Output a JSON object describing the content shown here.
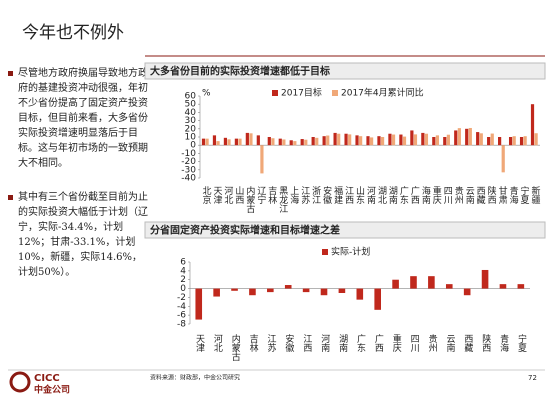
{
  "slide_title": "今年也不例外",
  "bullets": [
    "尽管地方政府换届导致地方政府的基建投资冲动很强，年初不少省份提高了固定资产投资目标，但目前来看，大多省份实际投资增速明显落后于目标。这与年初市场的一致预期大不相同。",
    "其中有三个省份截至目前为止的实际投资大幅低于计划（辽宁，实际-34.4%，计划12%；甘肃-33.1%，计划10%，新疆，实际14.6%，计划50%）。"
  ],
  "chart_data": [
    {
      "type": "bar",
      "title": "大多省份目前的实际投资增速都低于目标",
      "y_unit": "%",
      "categories": [
        "北京",
        "天津",
        "河北",
        "山西",
        "内蒙古",
        "辽宁",
        "吉林",
        "黑龙江",
        "上海",
        "江苏",
        "浙江",
        "安徽",
        "福建",
        "江西",
        "山东",
        "河南",
        "湖北",
        "湖南",
        "广东",
        "广西",
        "海南",
        "重庆",
        "四川",
        "贵州",
        "云南",
        "西藏",
        "陕西",
        "甘肃",
        "青海",
        "宁夏",
        "新疆"
      ],
      "series": [
        {
          "name": "2017目标",
          "color": "#c0281c",
          "values": [
            8,
            12,
            9,
            8,
            15,
            12,
            10,
            8,
            6,
            7.5,
            10,
            11,
            15,
            14,
            12,
            11,
            11,
            14,
            13,
            18,
            15,
            10,
            10,
            18,
            20,
            16,
            10,
            10,
            10,
            10,
            50
          ]
        },
        {
          "name": "2017年4月累计同比",
          "color": "#f0a878",
          "values": [
            8,
            5,
            7.2,
            8,
            14.5,
            -34.4,
            8.5,
            7,
            5,
            6.7,
            9,
            11.8,
            14,
            13.2,
            11,
            9.5,
            10,
            13,
            10.5,
            13.2,
            14,
            12,
            12.8,
            20.8,
            21,
            14.5,
            14.2,
            -33.1,
            11,
            11,
            14.6
          ]
        }
      ],
      "ylim": [
        -40,
        60
      ],
      "yticks": [
        -40,
        -30,
        -20,
        -10,
        0,
        10,
        20,
        30,
        40,
        50,
        60
      ]
    },
    {
      "type": "bar",
      "title": "分省固定资产投资实际增速和目标增速之差",
      "categories": [
        "天津",
        "河北",
        "内蒙古",
        "吉林",
        "江苏",
        "安徽",
        "江西",
        "河南",
        "湖南",
        "广东",
        "广西",
        "重庆",
        "四川",
        "贵州",
        "云南",
        "西藏",
        "陕西",
        "青海",
        "宁夏"
      ],
      "series": [
        {
          "name": "实际-计划",
          "color": "#c0281c",
          "values": [
            -7,
            -1.8,
            -0.5,
            -1.5,
            -0.8,
            0.8,
            -0.8,
            -1.5,
            -1,
            -2.5,
            -4.8,
            2,
            2.8,
            2.8,
            1,
            -1.5,
            4.2,
            1,
            1
          ]
        }
      ],
      "ylim": [
        -8,
        6
      ],
      "yticks": [
        -8,
        -6,
        -4,
        -2,
        0,
        2,
        4,
        6
      ]
    }
  ],
  "footer": {
    "source": "资料来源：财政部，中金公司研究",
    "page": "72",
    "logo_en": "CICC",
    "logo_cn": "中金公司"
  }
}
